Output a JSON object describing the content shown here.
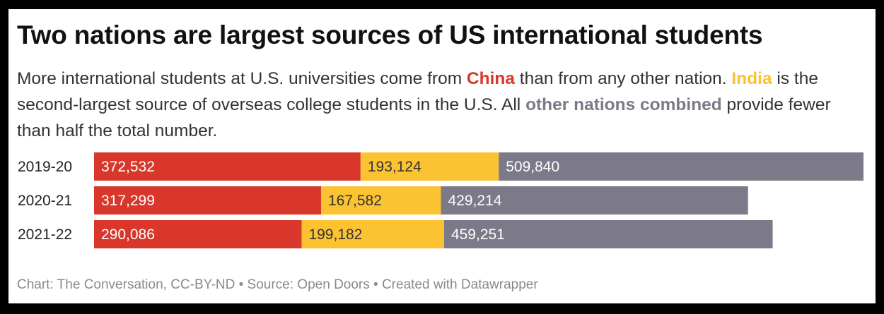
{
  "title": "Two nations are largest sources of US international students",
  "subtitle": {
    "p1": "More international students at U.S. universities come from ",
    "china": "China",
    "p2": " than from any other nation. ",
    "india": "India",
    "p3": " is the second-largest source of overseas college students in the U.S. All ",
    "other": "other nations combined",
    "p4": " provide fewer than half the total number."
  },
  "colors": {
    "china": "#d9372b",
    "india": "#fbc232",
    "other": "#7c7a88",
    "label_dark": "#333333",
    "label_light": "#ffffff"
  },
  "chart_data": {
    "type": "bar",
    "orientation": "horizontal",
    "stacked": true,
    "categories": [
      "2019-20",
      "2020-21",
      "2021-22"
    ],
    "series": [
      {
        "name": "China",
        "values": [
          372532,
          317299,
          290086
        ],
        "value_labels": [
          "372,532",
          "317,299",
          "290,086"
        ]
      },
      {
        "name": "India",
        "values": [
          193124,
          167582,
          199182
        ],
        "value_labels": [
          "193,124",
          "167,582",
          "199,182"
        ]
      },
      {
        "name": "other nations combined",
        "values": [
          509840,
          429214,
          459251
        ],
        "value_labels": [
          "509,840",
          "429,214",
          "459,251"
        ]
      }
    ],
    "xlim": [
      0,
      1075496
    ],
    "grid": false,
    "legend": "inline in subtitle text"
  },
  "footer": "Chart: The Conversation, CC-BY-ND • Source: Open Doors • Created with Datawrapper"
}
